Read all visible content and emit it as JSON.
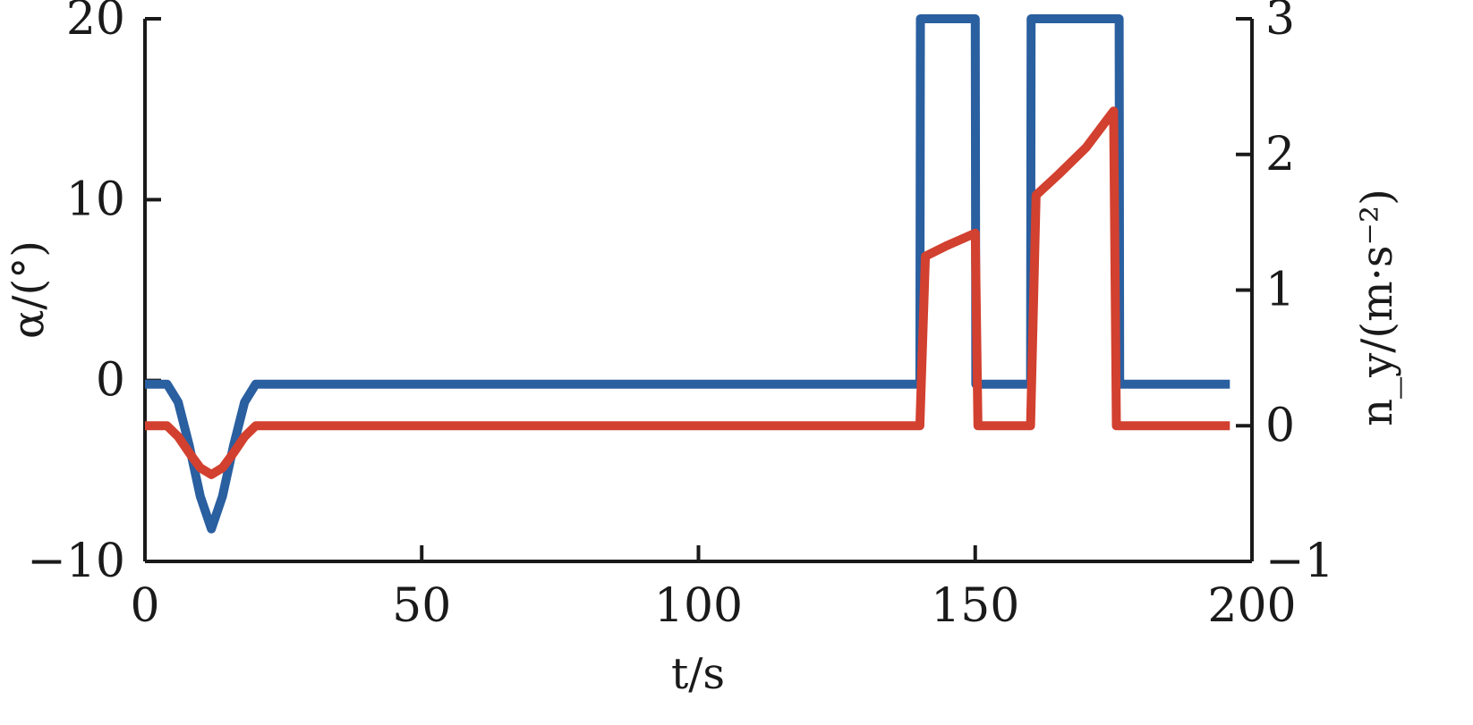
{
  "chart_data": {
    "type": "line",
    "xlabel": "t/s",
    "ylabel_left": "α/(°)",
    "ylabel_right": "n_y/(m·s⁻²)",
    "xlim": [
      0,
      200
    ],
    "ylim_left": [
      -10,
      20
    ],
    "ylim_right": [
      -1,
      3
    ],
    "x_ticks": [
      0,
      50,
      100,
      150,
      200
    ],
    "y_ticks_left": [
      -10,
      0,
      10,
      20
    ],
    "y_ticks_right": [
      -1,
      0,
      1,
      2,
      3
    ],
    "x_tick_labels": [
      "0",
      "50",
      "100",
      "150",
      "200"
    ],
    "y_tick_labels_left": [
      "−10",
      "0",
      "10",
      "20"
    ],
    "y_tick_labels_right": [
      "−1",
      "0",
      "1",
      "2",
      "3"
    ],
    "grid": false,
    "series": [
      {
        "axis": "left",
        "color": "#2a5fa0",
        "points": [
          [
            0,
            -0.2
          ],
          [
            4,
            -0.2
          ],
          [
            6,
            -1.2
          ],
          [
            8,
            -3.6
          ],
          [
            10,
            -6.4
          ],
          [
            12,
            -8.2
          ],
          [
            14,
            -6.4
          ],
          [
            16,
            -3.6
          ],
          [
            18,
            -1.2
          ],
          [
            20,
            -0.2
          ],
          [
            140,
            -0.2
          ],
          [
            140.1,
            20
          ],
          [
            150,
            20
          ],
          [
            150.1,
            -0.2
          ],
          [
            160,
            -0.2
          ],
          [
            160.1,
            20
          ],
          [
            176,
            20
          ],
          [
            176.1,
            -0.2
          ],
          [
            196,
            -0.2
          ]
        ]
      },
      {
        "axis": "right",
        "color": "#d2402f",
        "points": [
          [
            0,
            0
          ],
          [
            4,
            0
          ],
          [
            6,
            -0.08
          ],
          [
            8,
            -0.2
          ],
          [
            10,
            -0.31
          ],
          [
            12,
            -0.36
          ],
          [
            14,
            -0.31
          ],
          [
            16,
            -0.2
          ],
          [
            18,
            -0.08
          ],
          [
            20,
            0
          ],
          [
            140,
            0
          ],
          [
            141,
            1.25
          ],
          [
            145,
            1.33
          ],
          [
            150,
            1.42
          ],
          [
            150.5,
            0
          ],
          [
            160,
            0
          ],
          [
            161,
            1.7
          ],
          [
            165,
            1.85
          ],
          [
            170,
            2.05
          ],
          [
            175,
            2.32
          ],
          [
            175.5,
            0
          ],
          [
            196,
            0
          ]
        ]
      }
    ]
  }
}
